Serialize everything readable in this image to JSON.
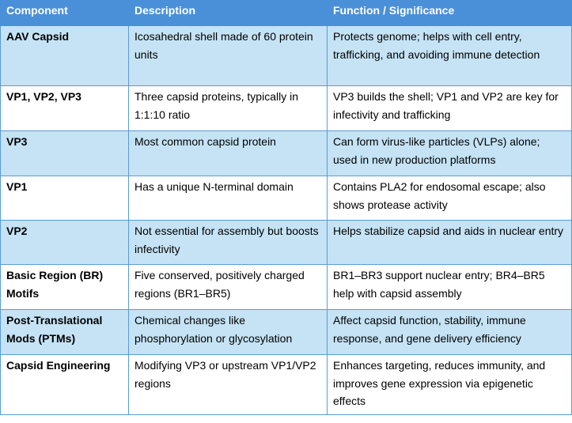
{
  "table": {
    "headers": [
      "Component",
      "Description",
      "Function / Significance"
    ],
    "rows": [
      {
        "component": "AAV Capsid",
        "description": "Icosahedral shell made of 60 protein units",
        "function": "Protects genome; helps with cell entry, trafficking, and avoiding immune detection"
      },
      {
        "component": "VP1, VP2, VP3",
        "description": "Three capsid proteins, typically in 1:1:10 ratio",
        "function": "VP3 builds the shell; VP1 and VP2 are key for infectivity and trafficking"
      },
      {
        "component": "VP3",
        "description": "Most common capsid protein",
        "function": "Can form virus-like particles (VLPs) alone; used in new production platforms"
      },
      {
        "component": "VP1",
        "description": "Has a unique N-terminal domain",
        "function": "Contains PLA2 for endosomal escape; also shows protease activity"
      },
      {
        "component": "VP2",
        "description": "Not essential for assembly but boosts infectivity",
        "function": "Helps stabilize capsid and aids in nuclear entry"
      },
      {
        "component": "Basic Region (BR) Motifs",
        "description": "Five conserved, positively charged regions (BR1–BR5)",
        "function": "BR1–BR3 support nuclear entry; BR4–BR5 help with capsid assembly"
      },
      {
        "component": "Post-Translational Mods (PTMs)",
        "description": "Chemical changes like phosphorylation or glycosylation",
        "function": "Affect capsid function, stability, immune response, and gene delivery efficiency"
      },
      {
        "component": "Capsid Engineering",
        "description": "Modifying VP3 or upstream VP1/VP2 regions",
        "function": "Enhances targeting, reduces immunity, and improves gene expression via epigenetic effects"
      }
    ]
  },
  "colors": {
    "header_bg": "#4a90d9",
    "alt_row_bg": "#c5e3f5",
    "border": "#5b9bd5"
  }
}
